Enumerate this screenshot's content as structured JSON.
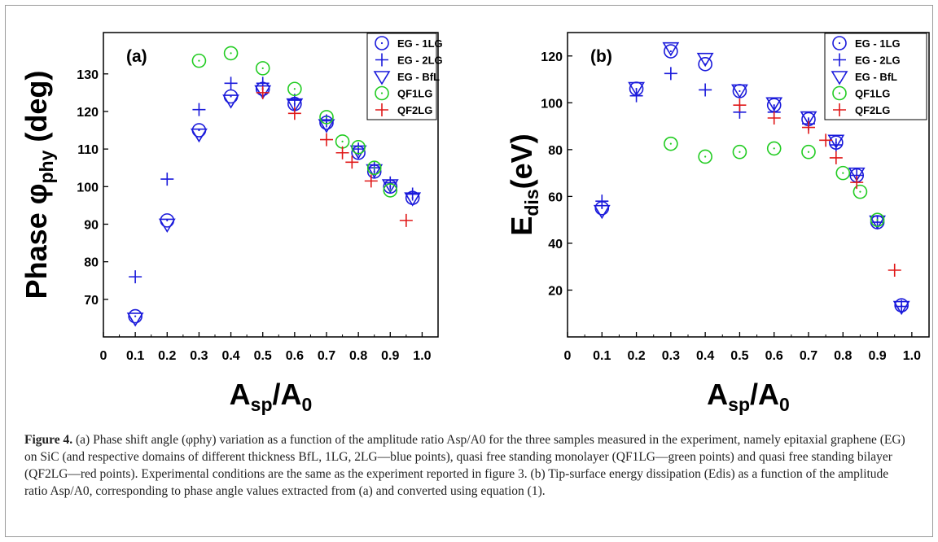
{
  "chart_data": [
    {
      "type": "scatter",
      "panel_label": "(a)",
      "ylabel_main": "Phase φ",
      "ylabel_sub": "phy",
      "ylabel_tail": " (deg)",
      "xlabel_main": "A",
      "xlabel_sub1": "sp",
      "xlabel_mid": "/A",
      "xlabel_sub2": "0",
      "xlim": [
        0,
        1.05
      ],
      "ylim": [
        60,
        141
      ],
      "xticks": [
        "0",
        "0.1",
        "0.2",
        "0.3",
        "0.4",
        "0.5",
        "0.6",
        "0.7",
        "0.8",
        "0.9",
        "1.0"
      ],
      "yticks": [
        "70",
        "80",
        "90",
        "100",
        "110",
        "120",
        "130"
      ],
      "legend_position": "top-right",
      "series": [
        {
          "name": "EG - 1LG",
          "marker": "circle-dot",
          "color": "#1a1adb",
          "x": [
            0.1,
            0.2,
            0.3,
            0.4,
            0.5,
            0.6,
            0.7,
            0.8,
            0.85,
            0.9,
            0.97
          ],
          "y": [
            65.5,
            91,
            115,
            124,
            126,
            122,
            117,
            109,
            104,
            100,
            97
          ]
        },
        {
          "name": "EG - 2LG",
          "marker": "plus",
          "color": "#1a1adb",
          "x": [
            0.1,
            0.2,
            0.3,
            0.4,
            0.5,
            0.6,
            0.7,
            0.8,
            0.85,
            0.9,
            0.97
          ],
          "y": [
            76,
            102,
            120.5,
            127.5,
            127.5,
            123,
            117.5,
            110,
            105,
            101,
            98
          ]
        },
        {
          "name": "EG - BfL",
          "marker": "triangle-down",
          "color": "#1a1adb",
          "x": [
            0.1,
            0.2,
            0.3,
            0.4,
            0.5,
            0.6,
            0.7,
            0.8,
            0.85,
            0.9,
            0.97
          ],
          "y": [
            65,
            90,
            114,
            123,
            125.5,
            122,
            116.5,
            109.5,
            104.5,
            100.5,
            97
          ]
        },
        {
          "name": "QF1LG",
          "marker": "circle-dot",
          "color": "#22cc22",
          "x": [
            0.3,
            0.4,
            0.5,
            0.6,
            0.7,
            0.75,
            0.8,
            0.85,
            0.9
          ],
          "y": [
            133.5,
            135.5,
            131.5,
            126,
            118.5,
            112,
            110.5,
            105,
            99
          ]
        },
        {
          "name": "QF2LG",
          "marker": "plus",
          "color": "#e01818",
          "x": [
            0.5,
            0.6,
            0.7,
            0.75,
            0.78,
            0.84,
            0.95
          ],
          "y": [
            125,
            119.5,
            112.5,
            109,
            106.5,
            101.5,
            91
          ]
        }
      ]
    },
    {
      "type": "scatter",
      "panel_label": "(b)",
      "ylabel_main": "E",
      "ylabel_sub": "dis",
      "ylabel_tail": "(eV)",
      "xlabel_main": "A",
      "xlabel_sub1": "sp",
      "xlabel_mid": "/A",
      "xlabel_sub2": "0",
      "xlim": [
        0,
        1.05
      ],
      "ylim": [
        0,
        130
      ],
      "xticks": [
        "0",
        "0.1",
        "0.2",
        "0.3",
        "0.4",
        "0.5",
        "0.6",
        "0.7",
        "0.8",
        "0.9",
        "1.0"
      ],
      "yticks": [
        "20",
        "40",
        "60",
        "80",
        "100",
        "120"
      ],
      "legend_position": "top-right",
      "series": [
        {
          "name": "EG - 1LG",
          "marker": "circle-dot",
          "color": "#1a1adb",
          "x": [
            0.1,
            0.2,
            0.3,
            0.4,
            0.5,
            0.6,
            0.7,
            0.78,
            0.84,
            0.9,
            0.97
          ],
          "y": [
            55,
            106,
            122,
            116.5,
            105,
            99,
            93,
            83,
            69,
            49,
            13.5
          ]
        },
        {
          "name": "EG - 2LG",
          "marker": "plus",
          "color": "#1a1adb",
          "x": [
            0.1,
            0.2,
            0.3,
            0.4,
            0.5,
            0.6,
            0.7,
            0.78,
            0.84,
            0.9,
            0.97
          ],
          "y": [
            58,
            103,
            112.5,
            105.5,
            96,
            96,
            91,
            82,
            69,
            49,
            13
          ]
        },
        {
          "name": "EG - BfL",
          "marker": "triangle-down",
          "color": "#1a1adb",
          "x": [
            0.1,
            0.2,
            0.3,
            0.4,
            0.5,
            0.6,
            0.7,
            0.78,
            0.84,
            0.9,
            0.97
          ],
          "y": [
            54,
            106.5,
            123.5,
            119,
            105.5,
            100,
            94,
            84,
            70,
            49.5,
            13
          ]
        },
        {
          "name": "QF1LG",
          "marker": "circle-dot",
          "color": "#22cc22",
          "x": [
            0.3,
            0.4,
            0.5,
            0.6,
            0.7,
            0.8,
            0.85,
            0.9
          ],
          "y": [
            82.5,
            77,
            79,
            80.5,
            79,
            70,
            62,
            50
          ]
        },
        {
          "name": "QF2LG",
          "marker": "plus",
          "color": "#e01818",
          "x": [
            0.5,
            0.6,
            0.7,
            0.75,
            0.78,
            0.84,
            0.95
          ],
          "y": [
            99,
            93.5,
            89.5,
            84,
            76.5,
            66,
            28.5
          ]
        }
      ]
    }
  ],
  "caption": {
    "label": "Figure 4.",
    "text": " (a) Phase shift angle (φphy) variation as a function of the amplitude ratio Asp/A0 for the three samples measured in the experiment, namely epitaxial graphene (EG) on SiC (and respective domains of different thickness BfL, 1LG, 2LG—blue points), quasi free standing monolayer (QF1LG—green points) and quasi free standing bilayer (QF2LG—red points). Experimental conditions are the same as the experiment reported in figure 3. (b) Tip-surface energy dissipation (Edis) as a function of the amplitude ratio Asp/A0, corresponding to phase angle values extracted from (a) and converted using equation (1)."
  }
}
